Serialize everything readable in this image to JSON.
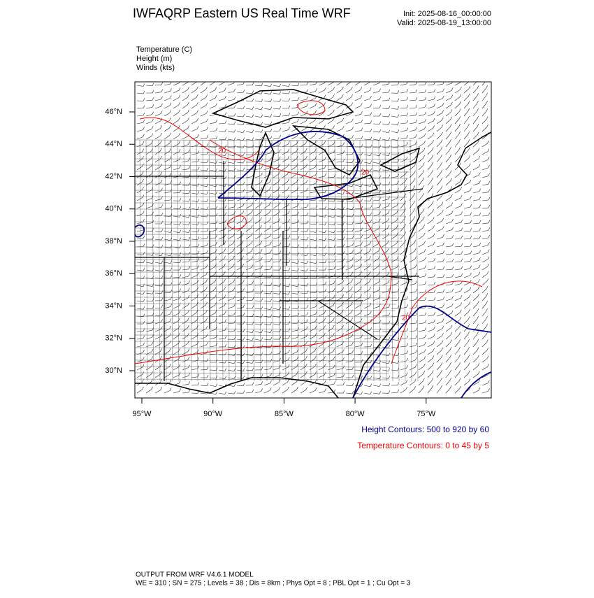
{
  "header": {
    "title": "IWFAQRP Eastern US Real Time WRF",
    "init": "Init: 2025-08-16_00:00:00",
    "valid": "Valid: 2025-08-19_13:00:00"
  },
  "fields": [
    "Temperature   (C)",
    "Height   (m)",
    "Winds   (kts)"
  ],
  "map": {
    "lat_labels": [
      "46°N",
      "44°N",
      "42°N",
      "40°N",
      "38°N",
      "36°N",
      "34°N",
      "32°N",
      "30°N"
    ],
    "lon_labels": [
      "95°W",
      "90°W",
      "85°W",
      "80°W",
      "75°W"
    ],
    "contour_labels": [
      "20",
      "20",
      "20"
    ]
  },
  "legend": {
    "height": "Height Contours: 500 to 920 by 60",
    "temperature": "Temperature Contours: 0 to 45 by 5"
  },
  "footer": {
    "line1": "OUTPUT FROM WRF V4.6.1 MODEL",
    "line2": "WE = 310 ; SN = 275 ; Levels = 38 ; Dis = 8km ; Phys Opt = 8 ; PBL Opt = 1 ; Cu Opt = 3"
  }
}
